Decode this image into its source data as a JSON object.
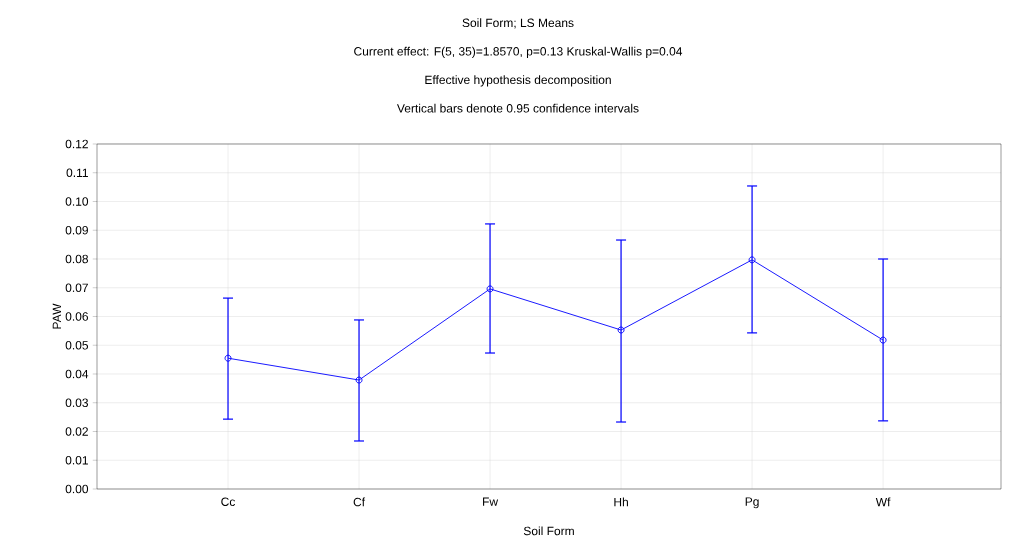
{
  "chart_data": {
    "type": "line",
    "title": "Soil Form; LS Means",
    "subtitle": "Current effect: F(5, 35)=1.8570, p=0.13 Kruskal-Wallis p=0.04",
    "annotations": [
      "Effective hypothesis decomposition",
      "Vertical bars denote 0.95 confidence intervals"
    ],
    "xlabel": "Soil Form",
    "ylabel": "PAW",
    "categories": [
      "Cc",
      "Cf",
      "Fw",
      "Hh",
      "Pg",
      "Wf"
    ],
    "series": [
      {
        "color": "#0000ff",
        "values": [
          0.0455,
          0.0379,
          0.0696,
          0.0553,
          0.0797,
          0.0518
        ],
        "errors": [
          [
            0.0243,
            0.0664
          ],
          [
            0.0167,
            0.0588
          ],
          [
            0.0473,
            0.0922
          ],
          [
            0.0233,
            0.0866
          ],
          [
            0.0543,
            0.1054
          ],
          [
            0.0237,
            0.08
          ]
        ]
      }
    ],
    "ylim": [
      0,
      0.12
    ],
    "yticks": [
      {
        "value": 0,
        "label": "0.00"
      },
      {
        "value": 0.01,
        "label": "0.01"
      },
      {
        "value": 0.02,
        "label": "0.02"
      },
      {
        "value": 0.03,
        "label": "0.03"
      },
      {
        "value": 0.04,
        "label": "0.04"
      },
      {
        "value": 0.05,
        "label": "0.05"
      },
      {
        "value": 0.06,
        "label": "0.06"
      },
      {
        "value": 0.07,
        "label": "0.07"
      },
      {
        "value": 0.08,
        "label": "0.08"
      },
      {
        "value": 0.09,
        "label": "0.09"
      },
      {
        "value": 0.1,
        "label": "0.10"
      },
      {
        "value": 0.11,
        "label": "0.11"
      },
      {
        "value": 0.12,
        "label": "0.12"
      }
    ],
    "grid": true,
    "marker": "circle",
    "line_style": "solid"
  }
}
